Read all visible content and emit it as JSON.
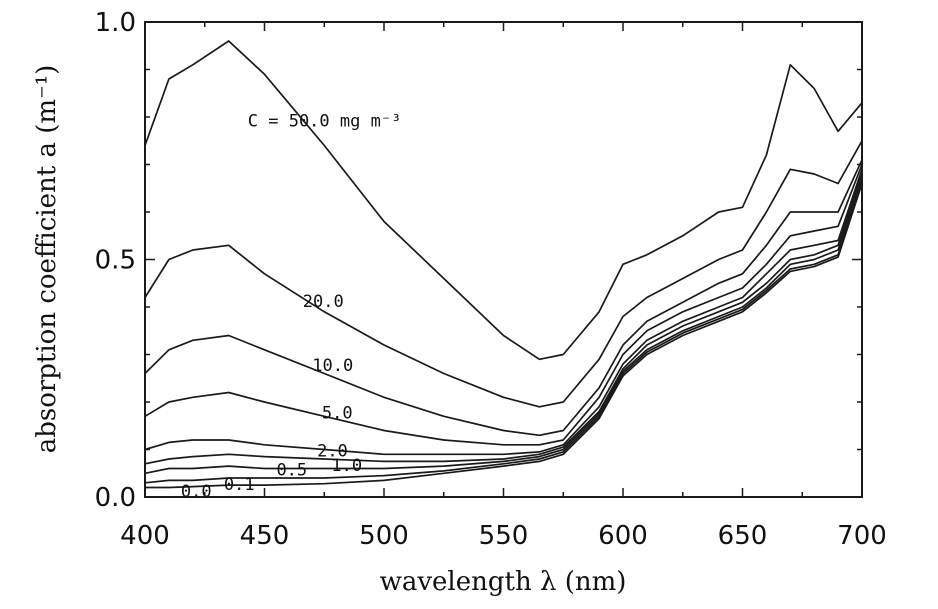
{
  "chart_data": {
    "type": "line",
    "xlabel": "wavelength λ (nm)",
    "ylabel": "absorption coefficient a (m⁻¹)",
    "xlim": [
      400,
      700
    ],
    "ylim": [
      0.0,
      1.0
    ],
    "x_ticks": [
      400,
      450,
      500,
      550,
      600,
      650,
      700
    ],
    "x_tick_labels": [
      "400",
      "450",
      "500",
      "550",
      "600",
      "650",
      "700"
    ],
    "y_ticks": [
      0.0,
      0.5,
      1.0
    ],
    "y_tick_labels": [
      "0.0",
      "0.5",
      "1.0"
    ],
    "grid": false,
    "x": [
      400,
      410,
      420,
      435,
      450,
      475,
      500,
      525,
      550,
      565,
      575,
      590,
      600,
      610,
      625,
      640,
      650,
      660,
      670,
      680,
      690,
      700
    ],
    "series": [
      {
        "label": "C = 50.0 mg m⁻³",
        "values": [
          0.74,
          0.88,
          0.91,
          0.96,
          0.89,
          0.74,
          0.58,
          0.46,
          0.34,
          0.29,
          0.3,
          0.39,
          0.49,
          0.51,
          0.55,
          0.6,
          0.61,
          0.72,
          0.91,
          0.86,
          0.77,
          0.83
        ]
      },
      {
        "label": "20.0",
        "values": [
          0.42,
          0.5,
          0.52,
          0.53,
          0.47,
          0.39,
          0.32,
          0.26,
          0.21,
          0.19,
          0.2,
          0.29,
          0.38,
          0.42,
          0.46,
          0.5,
          0.52,
          0.6,
          0.69,
          0.68,
          0.66,
          0.75
        ]
      },
      {
        "label": "10.0",
        "values": [
          0.26,
          0.31,
          0.33,
          0.34,
          0.31,
          0.26,
          0.21,
          0.17,
          0.14,
          0.13,
          0.14,
          0.23,
          0.32,
          0.37,
          0.41,
          0.45,
          0.47,
          0.53,
          0.6,
          0.6,
          0.6,
          0.71
        ]
      },
      {
        "label": "5.0",
        "values": [
          0.17,
          0.2,
          0.21,
          0.22,
          0.2,
          0.17,
          0.14,
          0.12,
          0.11,
          0.11,
          0.12,
          0.21,
          0.3,
          0.35,
          0.39,
          0.42,
          0.44,
          0.49,
          0.55,
          0.56,
          0.57,
          0.7
        ]
      },
      {
        "label": "2.0",
        "values": [
          0.1,
          0.115,
          0.12,
          0.12,
          0.11,
          0.1,
          0.09,
          0.09,
          0.09,
          0.095,
          0.11,
          0.19,
          0.28,
          0.33,
          0.37,
          0.4,
          0.42,
          0.47,
          0.52,
          0.53,
          0.54,
          0.69
        ]
      },
      {
        "label": "1.0",
        "values": [
          0.07,
          0.08,
          0.085,
          0.09,
          0.085,
          0.08,
          0.075,
          0.075,
          0.08,
          0.09,
          0.105,
          0.18,
          0.27,
          0.32,
          0.36,
          0.39,
          0.41,
          0.45,
          0.5,
          0.51,
          0.53,
          0.68
        ]
      },
      {
        "label": "0.5",
        "values": [
          0.05,
          0.06,
          0.06,
          0.065,
          0.06,
          0.06,
          0.06,
          0.065,
          0.075,
          0.085,
          0.1,
          0.175,
          0.265,
          0.31,
          0.35,
          0.38,
          0.4,
          0.44,
          0.49,
          0.5,
          0.52,
          0.67
        ]
      },
      {
        "label": "0.1",
        "values": [
          0.03,
          0.035,
          0.035,
          0.04,
          0.04,
          0.04,
          0.045,
          0.055,
          0.07,
          0.08,
          0.095,
          0.17,
          0.26,
          0.305,
          0.345,
          0.375,
          0.395,
          0.435,
          0.48,
          0.49,
          0.51,
          0.665
        ]
      },
      {
        "label": "0.0",
        "values": [
          0.02,
          0.02,
          0.022,
          0.025,
          0.025,
          0.028,
          0.035,
          0.05,
          0.065,
          0.075,
          0.09,
          0.165,
          0.255,
          0.3,
          0.34,
          0.37,
          0.39,
          0.43,
          0.475,
          0.485,
          0.505,
          0.66
        ]
      }
    ]
  }
}
